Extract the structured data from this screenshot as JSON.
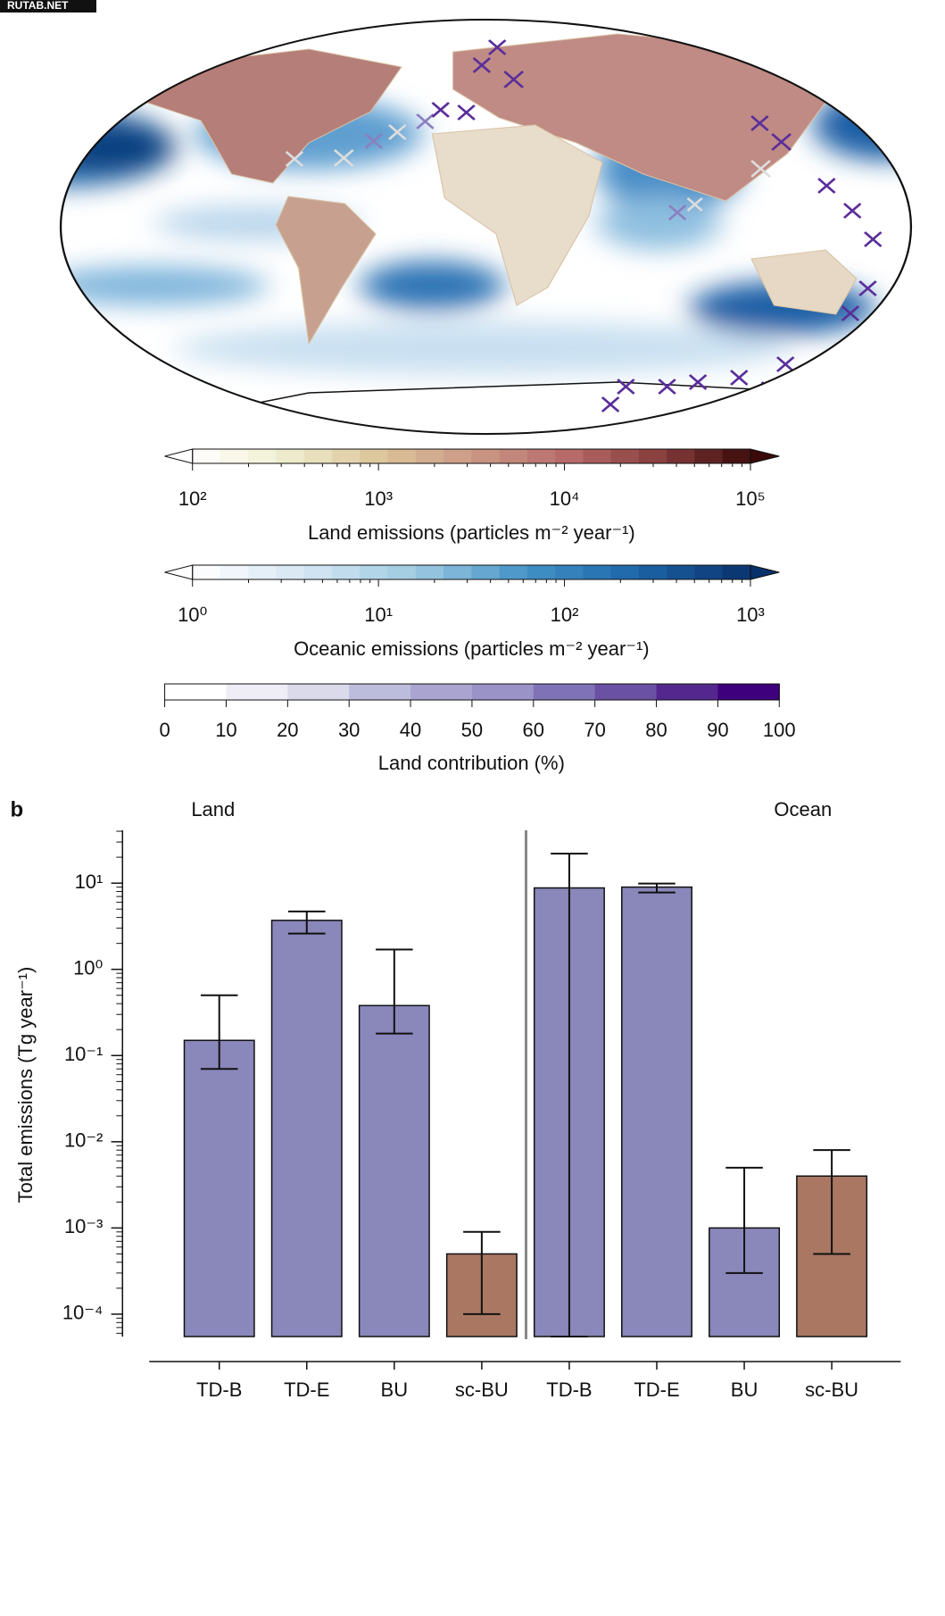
{
  "watermark": "RUTAB.NET",
  "chart_data": [
    {
      "type": "colorbar",
      "title": "Land emissions (particles m⁻² year⁻¹)",
      "log_scale": true,
      "extend": true,
      "lim": [
        100,
        100000
      ],
      "ticks": [
        {
          "value": 100,
          "label": "10²"
        },
        {
          "value": 1000,
          "label": "10³"
        },
        {
          "value": 10000,
          "label": "10⁴"
        },
        {
          "value": 100000,
          "label": "10⁵"
        }
      ],
      "colormap": [
        "#ffffff",
        "#efedcf",
        "#dcc59a",
        "#cc9a86",
        "#b86d6c",
        "#8a3f3f",
        "#3a0a0a"
      ]
    },
    {
      "type": "colorbar",
      "title": "Oceanic emissions (particles m⁻² year⁻¹)",
      "log_scale": true,
      "extend": true,
      "lim": [
        1,
        1000
      ],
      "ticks": [
        {
          "value": 1,
          "label": "10⁰"
        },
        {
          "value": 10,
          "label": "10¹"
        },
        {
          "value": 100,
          "label": "10²"
        },
        {
          "value": 1000,
          "label": "10³"
        }
      ],
      "colormap": [
        "#ffffff",
        "#d6e6f4",
        "#9ecae1",
        "#4292c6",
        "#1c64a8",
        "#08306b"
      ]
    },
    {
      "type": "colorbar",
      "title": "Land contribution (%)",
      "log_scale": false,
      "extend": false,
      "lim": [
        0,
        100
      ],
      "ticks": [
        0,
        10,
        20,
        30,
        40,
        50,
        60,
        70,
        80,
        90,
        100
      ],
      "colormap": [
        "#ffffff",
        "#efedf5",
        "#dadaeb",
        "#bcbddc",
        "#a9a5d0",
        "#9a93c8",
        "#7f72b7",
        "#6a51a3",
        "#54278f",
        "#3f007d"
      ]
    },
    {
      "type": "bar",
      "panel_label": "b",
      "group_labels": [
        "Land",
        "Ocean"
      ],
      "y_label": "Total emissions (Tg year⁻¹)",
      "log_scale": true,
      "categories": [
        "TD-B",
        "TD-E",
        "BU",
        "sc-BU",
        "TD-B",
        "TD-E",
        "BU",
        "sc-BU"
      ],
      "values": [
        0.15,
        3.7,
        0.38,
        0.0005,
        8.8,
        9.0,
        0.001,
        0.004
      ],
      "lower": [
        0.07,
        2.6,
        0.18,
        0.0001,
        5.5e-05,
        7.8,
        0.0003,
        0.0005
      ],
      "upper": [
        0.5,
        4.7,
        1.7,
        0.0009,
        22,
        9.9,
        0.005,
        0.008
      ],
      "colors": [
        "#8a87bb",
        "#8a87bb",
        "#8a87bb",
        "#a97762",
        "#8a87bb",
        "#8a87bb",
        "#8a87bb",
        "#a97762"
      ],
      "ylim": [
        5.5e-05,
        41
      ],
      "yticks": [
        {
          "value": 0.0001,
          "label": "10⁻⁴"
        },
        {
          "value": 0.001,
          "label": "10⁻³"
        },
        {
          "value": 0.01,
          "label": "10⁻²"
        },
        {
          "value": 0.1,
          "label": "10⁻¹"
        },
        {
          "value": 1,
          "label": "10⁰"
        },
        {
          "value": 10,
          "label": "10¹"
        }
      ]
    }
  ]
}
